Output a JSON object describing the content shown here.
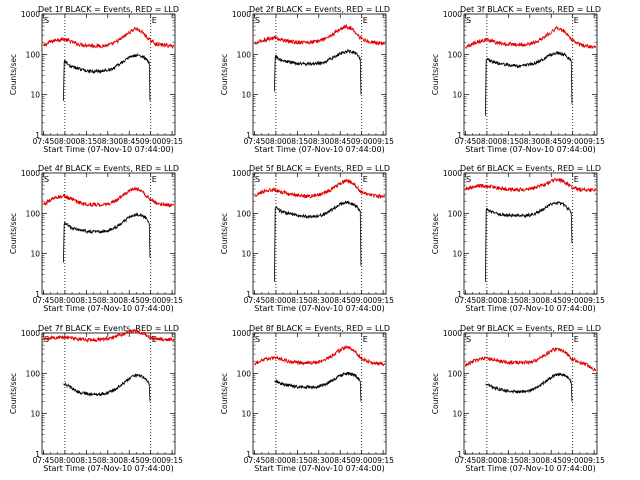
{
  "chart_data": {
    "type": "line",
    "title_template": "Det {n}f BLACK = Events, RED = LLD",
    "xlabel": "Start Time (07-Nov-10 07:44:00)",
    "ylabel": "Counts/sec",
    "x_tick_labels": [
      "07:45",
      "08:00",
      "08:15",
      "08:30",
      "08:45",
      "09:00",
      "09:15"
    ],
    "x_range_minutes": [
      0,
      93
    ],
    "y_scale": "log",
    "ylim": [
      1,
      1000
    ],
    "y_tick_labels": [
      "1",
      "10",
      "100",
      "1000"
    ],
    "series_colors": {
      "events": "#000000",
      "lld": "#e00000"
    },
    "panels": [
      {
        "title": "Det 1f BLACK = Events, RED = LLD",
        "marker_labels": [
          "S",
          "E"
        ],
        "dotted_lines_minutes": [
          16,
          76
        ],
        "lld": {
          "x": [
            1,
            5,
            10,
            15,
            20,
            25,
            30,
            35,
            40,
            45,
            50,
            55,
            60,
            65,
            70,
            75,
            80,
            85,
            92
          ],
          "y": [
            160,
            200,
            230,
            240,
            210,
            180,
            170,
            165,
            160,
            165,
            185,
            240,
            330,
            440,
            360,
            230,
            180,
            170,
            160
          ]
        },
        "events": {
          "x": [
            15,
            15.5,
            20,
            25,
            30,
            35,
            40,
            45,
            50,
            55,
            60,
            65,
            70,
            73,
            75,
            75.5
          ],
          "y": [
            7,
            70,
            50,
            45,
            40,
            38,
            38,
            40,
            45,
            60,
            80,
            95,
            90,
            75,
            60,
            7
          ]
        }
      },
      {
        "title": "Det 2f BLACK = Events, RED = LLD",
        "marker_labels": [
          "S",
          "E"
        ],
        "dotted_lines_minutes": [
          16,
          76
        ],
        "lld": {
          "x": [
            1,
            5,
            10,
            15,
            20,
            25,
            30,
            35,
            40,
            45,
            50,
            55,
            60,
            65,
            70,
            75,
            80,
            85,
            92
          ],
          "y": [
            180,
            210,
            240,
            260,
            230,
            210,
            200,
            200,
            200,
            210,
            240,
            300,
            400,
            500,
            420,
            260,
            210,
            200,
            180
          ]
        },
        "events": {
          "x": [
            15,
            15.5,
            20,
            25,
            30,
            35,
            40,
            45,
            50,
            55,
            60,
            65,
            70,
            73,
            75,
            75.5
          ],
          "y": [
            12,
            90,
            70,
            65,
            60,
            58,
            57,
            60,
            65,
            80,
            100,
            120,
            115,
            100,
            80,
            10
          ]
        }
      },
      {
        "title": "Det 3f BLACK = Events, RED = LLD",
        "marker_labels": [
          "S",
          "E"
        ],
        "dotted_lines_minutes": [
          16,
          76
        ],
        "lld": {
          "x": [
            1,
            5,
            10,
            15,
            20,
            25,
            30,
            35,
            40,
            45,
            50,
            55,
            60,
            65,
            70,
            75,
            80,
            85,
            92
          ],
          "y": [
            150,
            180,
            210,
            230,
            210,
            190,
            180,
            175,
            175,
            180,
            200,
            260,
            340,
            450,
            380,
            240,
            180,
            160,
            150
          ]
        },
        "events": {
          "x": [
            15,
            15.5,
            20,
            25,
            30,
            35,
            40,
            45,
            50,
            55,
            60,
            65,
            70,
            73,
            75,
            75.5
          ],
          "y": [
            3,
            80,
            65,
            60,
            55,
            52,
            52,
            55,
            60,
            75,
            95,
            110,
            100,
            80,
            70,
            6
          ]
        }
      },
      {
        "title": "Det 4f BLACK = Events, RED = LLD",
        "marker_labels": [
          "S",
          "E"
        ],
        "dotted_lines_minutes": [
          16,
          76
        ],
        "lld": {
          "x": [
            1,
            5,
            10,
            15,
            20,
            25,
            30,
            35,
            40,
            45,
            50,
            55,
            60,
            65,
            70,
            75,
            80,
            85,
            92
          ],
          "y": [
            160,
            210,
            250,
            270,
            230,
            190,
            170,
            165,
            165,
            170,
            190,
            250,
            340,
            430,
            360,
            230,
            180,
            165,
            160
          ]
        },
        "events": {
          "x": [
            15,
            15.5,
            20,
            25,
            30,
            35,
            40,
            45,
            50,
            55,
            60,
            65,
            70,
            73,
            75,
            75.5
          ],
          "y": [
            6,
            60,
            45,
            40,
            37,
            35,
            35,
            37,
            42,
            55,
            75,
            95,
            90,
            75,
            55,
            8
          ]
        }
      },
      {
        "title": "Det 5f BLACK = Events, RED = LLD",
        "marker_labels": [
          "S",
          "E"
        ],
        "dotted_lines_minutes": [
          16,
          76
        ],
        "lld": {
          "x": [
            1,
            5,
            10,
            15,
            20,
            25,
            30,
            35,
            40,
            45,
            50,
            55,
            60,
            65,
            70,
            75,
            80,
            85,
            92
          ],
          "y": [
            260,
            320,
            370,
            380,
            340,
            300,
            280,
            270,
            270,
            280,
            320,
            400,
            520,
            650,
            560,
            360,
            290,
            270,
            260
          ]
        },
        "events": {
          "x": [
            15,
            15.5,
            20,
            25,
            30,
            35,
            40,
            45,
            50,
            55,
            60,
            65,
            70,
            73,
            75,
            75.5
          ],
          "y": [
            2,
            140,
            110,
            100,
            90,
            85,
            82,
            85,
            95,
            120,
            160,
            190,
            170,
            140,
            110,
            5
          ]
        }
      },
      {
        "title": "Det 6f BLACK = Events, RED = LLD",
        "marker_labels": [
          "S",
          "E"
        ],
        "dotted_lines_minutes": [
          16,
          76
        ],
        "lld": {
          "x": [
            1,
            5,
            10,
            15,
            20,
            25,
            30,
            35,
            40,
            45,
            50,
            55,
            60,
            65,
            70,
            75,
            80,
            85,
            92
          ],
          "y": [
            400,
            450,
            480,
            480,
            450,
            420,
            400,
            390,
            390,
            400,
            430,
            500,
            600,
            700,
            620,
            450,
            400,
            380,
            370
          ]
        },
        "events": {
          "x": [
            15,
            15.5,
            20,
            25,
            30,
            35,
            40,
            45,
            50,
            55,
            60,
            65,
            70,
            73,
            75,
            75.5
          ],
          "y": [
            2,
            130,
            105,
            95,
            90,
            88,
            88,
            90,
            100,
            125,
            160,
            185,
            165,
            130,
            100,
            18
          ]
        }
      },
      {
        "title": "Det 7f BLACK = Events, RED = LLD",
        "marker_labels": [
          "S",
          "E"
        ],
        "dotted_lines_minutes": [
          16,
          76
        ],
        "lld": {
          "x": [
            1,
            5,
            10,
            15,
            20,
            25,
            30,
            35,
            40,
            45,
            50,
            55,
            60,
            65,
            70,
            75,
            80,
            85,
            92
          ],
          "y": [
            700,
            750,
            780,
            800,
            760,
            700,
            680,
            680,
            700,
            720,
            780,
            900,
            1050,
            1150,
            1000,
            800,
            720,
            700,
            680
          ]
        },
        "events": {
          "x": [
            15,
            16,
            20,
            25,
            30,
            35,
            40,
            45,
            50,
            55,
            60,
            65,
            70,
            73,
            75,
            75.5
          ],
          "y": [
            55,
            55,
            45,
            35,
            32,
            30,
            30,
            32,
            38,
            50,
            70,
            90,
            85,
            70,
            55,
            20
          ]
        }
      },
      {
        "title": "Det 8f BLACK = Events, RED = LLD",
        "marker_labels": [
          "S",
          "E"
        ],
        "dotted_lines_minutes": [
          16,
          76
        ],
        "lld": {
          "x": [
            1,
            5,
            10,
            15,
            20,
            25,
            30,
            35,
            40,
            45,
            50,
            55,
            60,
            65,
            70,
            75,
            80,
            85,
            92
          ],
          "y": [
            170,
            200,
            230,
            240,
            220,
            200,
            190,
            185,
            185,
            190,
            210,
            270,
            360,
            460,
            390,
            250,
            200,
            180,
            170
          ]
        },
        "events": {
          "x": [
            15,
            16,
            20,
            25,
            30,
            35,
            40,
            45,
            50,
            55,
            60,
            65,
            70,
            73,
            75,
            75.5
          ],
          "y": [
            65,
            65,
            55,
            50,
            47,
            45,
            45,
            47,
            52,
            65,
            85,
            100,
            95,
            80,
            65,
            20
          ]
        }
      },
      {
        "title": "Det 9f BLACK = Events, RED = LLD",
        "marker_labels": [
          "S",
          "E"
        ],
        "dotted_lines_minutes": [
          16,
          76
        ],
        "lld": {
          "x": [
            1,
            5,
            10,
            15,
            20,
            25,
            30,
            35,
            40,
            45,
            50,
            55,
            60,
            65,
            70,
            75,
            80,
            85,
            92
          ],
          "y": [
            160,
            190,
            220,
            240,
            220,
            200,
            190,
            185,
            185,
            190,
            210,
            260,
            340,
            430,
            360,
            230,
            190,
            170,
            120
          ]
        },
        "events": {
          "x": [
            15,
            16,
            20,
            25,
            30,
            35,
            40,
            45,
            50,
            55,
            60,
            65,
            70,
            73,
            75,
            75.5
          ],
          "y": [
            55,
            55,
            45,
            40,
            37,
            35,
            35,
            37,
            42,
            55,
            75,
            95,
            90,
            75,
            60,
            20
          ]
        }
      }
    ]
  }
}
